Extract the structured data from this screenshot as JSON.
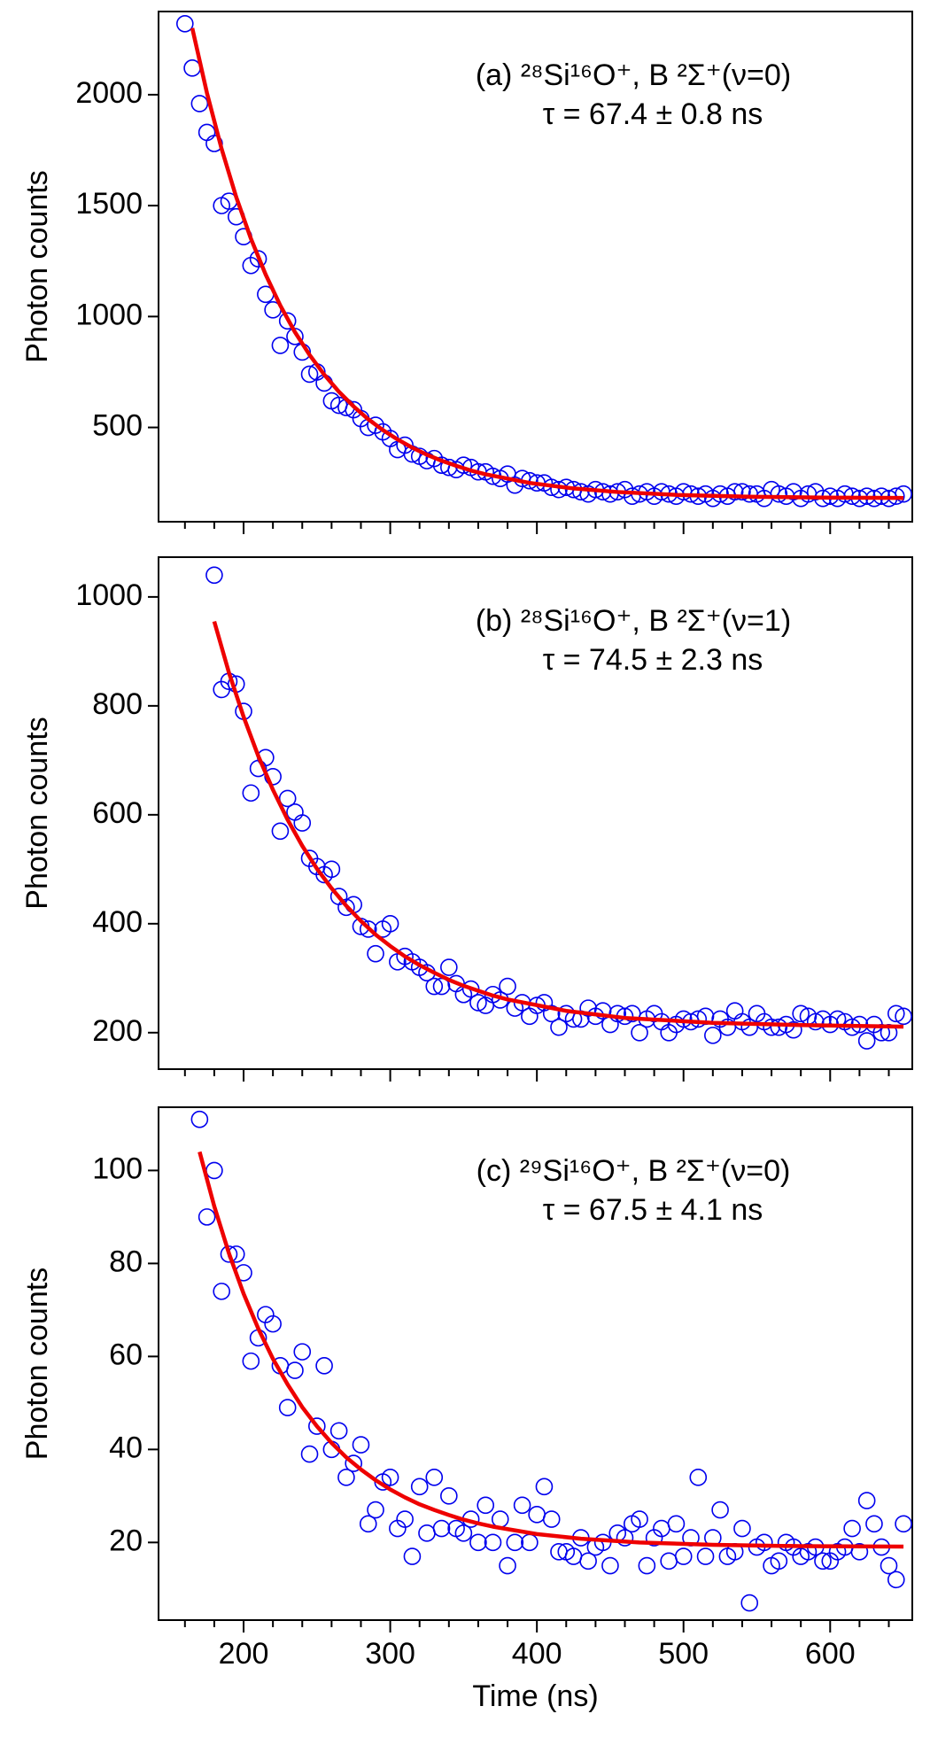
{
  "chart_data": [
    {
      "type": "scatter",
      "annotations": [
        "(a) ²⁸Si¹⁶O⁺, B ²Σ⁺(ν=0)",
        "τ = 67.4 ± 0.8 ns"
      ],
      "ylabel": "Photon counts",
      "xlim": [
        142,
        656
      ],
      "xticks": [
        200,
        300,
        400,
        500,
        600
      ],
      "xminor_ticks": [
        160,
        180,
        220,
        240,
        260,
        280,
        320,
        340,
        360,
        380,
        420,
        440,
        460,
        480,
        520,
        540,
        560,
        580,
        620,
        640
      ],
      "xtick_labels": false,
      "ylim": [
        75,
        2375
      ],
      "yticks": [
        500,
        1000,
        1500,
        2000
      ],
      "series": [
        {
          "type": "scatter",
          "color": "#0000ee",
          "x": [
            160,
            165,
            170,
            175,
            180,
            185,
            190,
            195,
            200,
            205,
            210,
            215,
            220,
            225,
            230,
            235,
            240,
            245,
            250,
            255,
            260,
            265,
            270,
            275,
            280,
            285,
            290,
            295,
            300,
            305,
            310,
            315,
            320,
            325,
            330,
            335,
            340,
            345,
            350,
            355,
            360,
            365,
            370,
            375,
            380,
            385,
            390,
            395,
            400,
            405,
            410,
            415,
            420,
            425,
            430,
            435,
            440,
            445,
            450,
            455,
            460,
            465,
            470,
            475,
            480,
            485,
            490,
            495,
            500,
            505,
            510,
            515,
            520,
            525,
            530,
            535,
            540,
            545,
            550,
            555,
            560,
            565,
            570,
            575,
            580,
            585,
            590,
            595,
            600,
            605,
            610,
            615,
            620,
            625,
            630,
            635,
            640,
            645,
            650
          ],
          "values": [
            2320,
            2120,
            1960,
            1830,
            1780,
            1500,
            1520,
            1450,
            1360,
            1230,
            1260,
            1100,
            1030,
            870,
            980,
            910,
            840,
            740,
            750,
            700,
            620,
            600,
            590,
            580,
            540,
            500,
            510,
            480,
            450,
            400,
            420,
            380,
            370,
            350,
            360,
            330,
            320,
            310,
            330,
            320,
            300,
            300,
            280,
            270,
            290,
            240,
            270,
            260,
            250,
            250,
            230,
            220,
            230,
            220,
            210,
            200,
            220,
            210,
            200,
            210,
            220,
            190,
            200,
            210,
            190,
            210,
            200,
            190,
            210,
            200,
            190,
            200,
            180,
            200,
            190,
            210,
            210,
            200,
            200,
            180,
            220,
            200,
            190,
            210,
            180,
            200,
            210,
            180,
            190,
            180,
            200,
            190,
            180,
            190,
            180,
            190,
            180,
            190,
            200
          ]
        },
        {
          "type": "line",
          "color": "#ee0000",
          "x": [
            165,
            175,
            185,
            195,
            205,
            215,
            225,
            235,
            245,
            255,
            265,
            275,
            285,
            295,
            305,
            315,
            325,
            335,
            345,
            355,
            365,
            395,
            425,
            455,
            495,
            545,
            595,
            650
          ],
          "values": [
            2300,
            2008,
            1756,
            1538,
            1351,
            1190,
            1050,
            930,
            827,
            738,
            661,
            595,
            537,
            488,
            446,
            409,
            377,
            350,
            327,
            306,
            289,
            250,
            225,
            209,
            196,
            188,
            184,
            182
          ]
        }
      ]
    },
    {
      "type": "scatter",
      "annotations": [
        "(b) ²⁸Si¹⁶O⁺, B ²Σ⁺(ν=1)",
        "τ = 74.5 ± 2.3 ns"
      ],
      "ylabel": "Photon counts",
      "xlim": [
        142,
        656
      ],
      "xticks": [
        200,
        300,
        400,
        500,
        600
      ],
      "xminor_ticks": [
        160,
        180,
        220,
        240,
        260,
        280,
        320,
        340,
        360,
        380,
        420,
        440,
        460,
        480,
        520,
        540,
        560,
        580,
        620,
        640
      ],
      "xtick_labels": false,
      "ylim": [
        133,
        1073
      ],
      "yticks": [
        200,
        400,
        600,
        800,
        1000
      ],
      "series": [
        {
          "type": "scatter",
          "color": "#0000ee",
          "x": [
            180,
            185,
            190,
            195,
            200,
            205,
            210,
            215,
            220,
            225,
            230,
            235,
            240,
            245,
            250,
            255,
            260,
            265,
            270,
            275,
            280,
            285,
            290,
            295,
            300,
            305,
            310,
            315,
            320,
            325,
            330,
            335,
            340,
            345,
            350,
            355,
            360,
            365,
            370,
            375,
            380,
            385,
            390,
            395,
            400,
            405,
            410,
            415,
            420,
            425,
            430,
            435,
            440,
            445,
            450,
            455,
            460,
            465,
            470,
            475,
            480,
            485,
            490,
            495,
            500,
            505,
            510,
            515,
            520,
            525,
            530,
            535,
            540,
            545,
            550,
            555,
            560,
            565,
            570,
            575,
            580,
            585,
            590,
            595,
            600,
            605,
            610,
            615,
            620,
            625,
            630,
            635,
            640,
            645,
            650
          ],
          "values": [
            1040,
            830,
            845,
            840,
            790,
            640,
            685,
            705,
            670,
            570,
            630,
            605,
            585,
            520,
            505,
            490,
            500,
            450,
            430,
            435,
            395,
            390,
            345,
            390,
            400,
            330,
            340,
            330,
            320,
            310,
            285,
            285,
            320,
            290,
            270,
            280,
            255,
            250,
            270,
            260,
            285,
            245,
            255,
            230,
            250,
            255,
            235,
            210,
            235,
            225,
            225,
            245,
            230,
            240,
            215,
            235,
            230,
            235,
            200,
            225,
            235,
            220,
            200,
            215,
            225,
            220,
            225,
            230,
            195,
            225,
            210,
            240,
            220,
            210,
            235,
            220,
            210,
            210,
            215,
            205,
            235,
            230,
            220,
            225,
            215,
            225,
            220,
            210,
            215,
            185,
            215,
            200,
            200,
            235,
            230
          ]
        },
        {
          "type": "line",
          "color": "#ee0000",
          "x": [
            180,
            190,
            200,
            210,
            220,
            230,
            240,
            250,
            260,
            270,
            280,
            290,
            300,
            310,
            320,
            330,
            340,
            350,
            360,
            370,
            380,
            420,
            460,
            520,
            580,
            650
          ],
          "values": [
            955,
            861,
            780,
            708,
            646,
            591,
            543,
            501,
            465,
            433,
            405,
            380,
            359,
            340,
            324,
            310,
            297,
            286,
            277,
            268,
            261,
            240,
            227,
            218,
            214,
            211
          ]
        }
      ]
    },
    {
      "type": "scatter",
      "annotations": [
        "(c) ²⁹Si¹⁶O⁺, B ²Σ⁺(ν=0)",
        "τ = 67.5 ± 4.1 ns"
      ],
      "ylabel": "Photon counts",
      "xlabel": "Time (ns)",
      "xlim": [
        142,
        656
      ],
      "xticks": [
        200,
        300,
        400,
        500,
        600
      ],
      "xminor_ticks": [
        160,
        180,
        220,
        240,
        260,
        280,
        320,
        340,
        360,
        380,
        420,
        440,
        460,
        480,
        520,
        540,
        560,
        580,
        620,
        640
      ],
      "xtick_labels": true,
      "ylim": [
        3.3,
        113.6
      ],
      "yticks": [
        20,
        40,
        60,
        80,
        100
      ],
      "series": [
        {
          "type": "scatter",
          "color": "#0000ee",
          "x": [
            170,
            175,
            180,
            185,
            190,
            195,
            200,
            205,
            210,
            215,
            220,
            225,
            230,
            235,
            240,
            245,
            250,
            255,
            260,
            265,
            270,
            275,
            280,
            285,
            290,
            295,
            300,
            305,
            310,
            315,
            320,
            325,
            330,
            335,
            340,
            345,
            350,
            355,
            360,
            365,
            370,
            375,
            380,
            385,
            390,
            395,
            400,
            405,
            410,
            415,
            420,
            425,
            430,
            435,
            440,
            445,
            450,
            455,
            460,
            465,
            470,
            475,
            480,
            485,
            490,
            495,
            500,
            505,
            510,
            515,
            520,
            525,
            530,
            535,
            540,
            545,
            550,
            555,
            560,
            565,
            570,
            575,
            580,
            585,
            590,
            595,
            600,
            605,
            610,
            615,
            620,
            625,
            630,
            635,
            640,
            645,
            650
          ],
          "values": [
            111,
            90,
            100,
            74,
            82,
            82,
            78,
            59,
            64,
            69,
            67,
            58,
            49,
            57,
            61,
            39,
            45,
            58,
            40,
            44,
            34,
            37,
            41,
            24,
            27,
            33,
            34,
            23,
            25,
            17,
            32,
            22,
            34,
            23,
            30,
            23,
            22,
            25,
            20,
            28,
            20,
            25,
            15,
            20,
            28,
            20,
            26,
            32,
            25,
            18,
            18,
            17,
            21,
            16,
            19,
            20,
            15,
            22,
            21,
            24,
            25,
            15,
            21,
            23,
            16,
            24,
            17,
            21,
            34,
            17,
            21,
            27,
            17,
            18,
            23,
            7,
            19,
            20,
            15,
            16,
            20,
            19,
            17,
            18,
            19,
            16,
            16,
            18,
            19,
            23,
            18,
            29,
            24,
            19,
            15,
            12,
            24
          ]
        },
        {
          "type": "line",
          "color": "#ee0000",
          "x": [
            170,
            180,
            190,
            200,
            210,
            220,
            230,
            240,
            250,
            260,
            270,
            280,
            290,
            300,
            310,
            320,
            330,
            340,
            350,
            360,
            370,
            400,
            430,
            470,
            520,
            580,
            650
          ],
          "values": [
            104,
            92.3,
            82.2,
            73.5,
            66.0,
            59.5,
            54.0,
            49.1,
            45.0,
            41.4,
            38.3,
            35.7,
            33.4,
            31.4,
            29.7,
            28.2,
            27.0,
            25.9,
            24.9,
            24.1,
            23.4,
            21.8,
            20.8,
            20.0,
            19.5,
            19.2,
            19.1
          ]
        }
      ]
    }
  ]
}
